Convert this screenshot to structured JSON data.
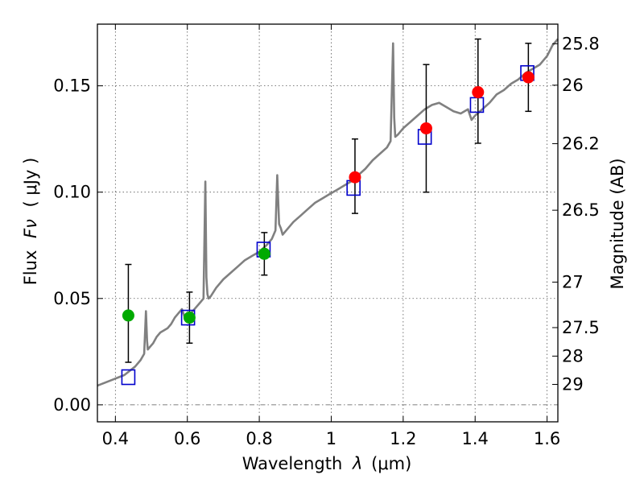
{
  "chart_data": {
    "type": "scatter",
    "xlabel_prefix": "Wavelength",
    "xlabel_symbol": "λ",
    "xlabel_unit": "(μm)",
    "ylabel_prefix": "Flux",
    "ylabel_symbol": "Fν",
    "ylabel_unit": "( μJy )",
    "y2label": "Magnitude (AB)",
    "xlim": [
      0.35,
      1.63
    ],
    "ylim": [
      -0.008,
      0.179
    ],
    "grid": true,
    "x_ticks": [
      {
        "value": 0.4,
        "label": "0.4"
      },
      {
        "value": 0.6,
        "label": "0.6"
      },
      {
        "value": 0.8,
        "label": "0.8"
      },
      {
        "value": 1.0,
        "label": "1"
      },
      {
        "value": 1.2,
        "label": "1.2"
      },
      {
        "value": 1.4,
        "label": "1.4"
      },
      {
        "value": 1.6,
        "label": "1.6"
      }
    ],
    "y_ticks": [
      {
        "value": 0.0,
        "label": "0.00"
      },
      {
        "value": 0.05,
        "label": "0.05"
      },
      {
        "value": 0.1,
        "label": "0.10"
      },
      {
        "value": 0.15,
        "label": "0.15"
      }
    ],
    "mag_ticks": [
      {
        "flux": 0.1698,
        "label": "25.8"
      },
      {
        "flux": 0.1503,
        "label": "26"
      },
      {
        "flux": 0.1228,
        "label": "26.2"
      },
      {
        "flux": 0.0915,
        "label": "26.5"
      },
      {
        "flux": 0.0577,
        "label": "27"
      },
      {
        "flux": 0.0363,
        "label": "27.5"
      },
      {
        "flux": 0.0229,
        "label": "28"
      },
      {
        "flux": 0.0096,
        "label": "29"
      }
    ],
    "colors": {
      "spectrum": "#808080",
      "model": "#0000cc",
      "green": "#00aa00",
      "red": "#ff0000",
      "errorbar": "#000000",
      "grid": "#555555"
    },
    "series": [
      {
        "name": "model_spectrum",
        "style": "line",
        "x": [
          0.35,
          0.365,
          0.38,
          0.395,
          0.41,
          0.425,
          0.44,
          0.455,
          0.47,
          0.48,
          0.485,
          0.488,
          0.49,
          0.495,
          0.505,
          0.515,
          0.525,
          0.535,
          0.545,
          0.555,
          0.565,
          0.575,
          0.585,
          0.595,
          0.605,
          0.615,
          0.625,
          0.635,
          0.645,
          0.65,
          0.653,
          0.656,
          0.659,
          0.665,
          0.68,
          0.7,
          0.72,
          0.74,
          0.76,
          0.78,
          0.8,
          0.82,
          0.835,
          0.845,
          0.85,
          0.855,
          0.86,
          0.865,
          0.875,
          0.895,
          0.915,
          0.935,
          0.955,
          0.975,
          0.995,
          1.015,
          1.035,
          1.055,
          1.075,
          1.095,
          1.115,
          1.135,
          1.155,
          1.165,
          1.172,
          1.175,
          1.178,
          1.185,
          1.2,
          1.22,
          1.24,
          1.26,
          1.28,
          1.3,
          1.32,
          1.34,
          1.36,
          1.38,
          1.39,
          1.4,
          1.42,
          1.44,
          1.46,
          1.48,
          1.5,
          1.52,
          1.54,
          1.56,
          1.58,
          1.6,
          1.615,
          1.63
        ],
        "y": [
          0.009,
          0.01,
          0.011,
          0.012,
          0.013,
          0.014,
          0.016,
          0.018,
          0.021,
          0.024,
          0.044,
          0.03,
          0.026,
          0.027,
          0.029,
          0.032,
          0.034,
          0.035,
          0.036,
          0.038,
          0.041,
          0.043,
          0.045,
          0.04,
          0.042,
          0.044,
          0.046,
          0.048,
          0.05,
          0.105,
          0.06,
          0.052,
          0.05,
          0.051,
          0.055,
          0.059,
          0.062,
          0.065,
          0.068,
          0.07,
          0.072,
          0.075,
          0.078,
          0.082,
          0.108,
          0.085,
          0.083,
          0.08,
          0.082,
          0.086,
          0.089,
          0.092,
          0.095,
          0.097,
          0.099,
          0.101,
          0.103,
          0.105,
          0.108,
          0.111,
          0.115,
          0.118,
          0.121,
          0.124,
          0.17,
          0.135,
          0.126,
          0.127,
          0.13,
          0.133,
          0.136,
          0.139,
          0.141,
          0.142,
          0.14,
          0.138,
          0.137,
          0.139,
          0.134,
          0.136,
          0.139,
          0.142,
          0.146,
          0.148,
          0.151,
          0.153,
          0.156,
          0.158,
          0.16,
          0.164,
          0.169,
          0.172
        ]
      },
      {
        "name": "model_photometry",
        "style": "open-square",
        "x": [
          0.436,
          0.602,
          0.812,
          1.062,
          1.26,
          1.405,
          1.545
        ],
        "y": [
          0.013,
          0.041,
          0.073,
          0.102,
          0.126,
          0.141,
          0.156
        ]
      },
      {
        "name": "observed_green",
        "style": "filled-circle",
        "x": [
          0.436,
          0.606,
          0.814
        ],
        "y": [
          0.042,
          0.041,
          0.071
        ],
        "yerr_low": [
          0.022,
          0.012,
          0.01
        ],
        "yerr_high": [
          0.024,
          0.012,
          0.01
        ]
      },
      {
        "name": "observed_red",
        "style": "filled-circle",
        "x": [
          1.066,
          1.264,
          1.408,
          1.548
        ],
        "y": [
          0.107,
          0.13,
          0.147,
          0.154
        ],
        "yerr_low": [
          0.017,
          0.03,
          0.024,
          0.016
        ],
        "yerr_high": [
          0.018,
          0.03,
          0.025,
          0.016
        ]
      }
    ]
  }
}
